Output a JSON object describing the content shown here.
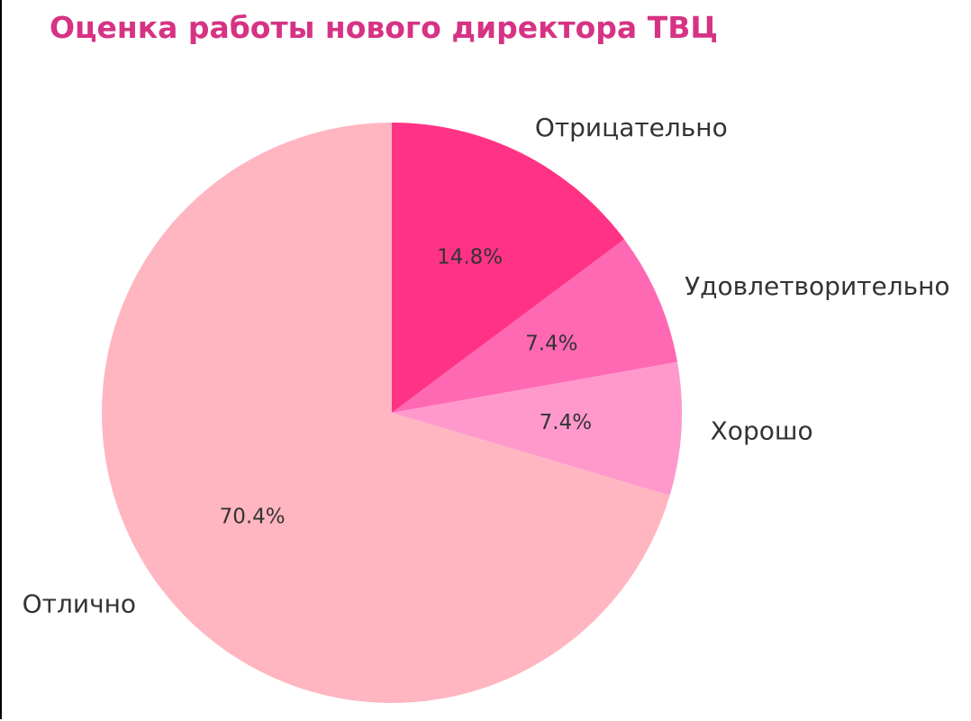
{
  "chart_data": {
    "type": "pie",
    "title": "Оценка работы нового директора ТВЦ",
    "title_color": "#D63384",
    "slices": [
      {
        "label": "Отрицательно",
        "value": 14.8,
        "pct_label": "14.8%",
        "color": "#FF3385"
      },
      {
        "label": "Удовлетворительно",
        "value": 7.4,
        "pct_label": "7.4%",
        "color": "#FF69B4"
      },
      {
        "label": "Хорошо",
        "value": 7.4,
        "pct_label": "7.4%",
        "color": "#FF99CC"
      },
      {
        "label": "Отлично",
        "value": 70.4,
        "pct_label": "70.4%",
        "color": "#FFB6C1"
      }
    ],
    "start_angle": "12 o'clock",
    "direction": "clockwise",
    "legend": "none"
  }
}
